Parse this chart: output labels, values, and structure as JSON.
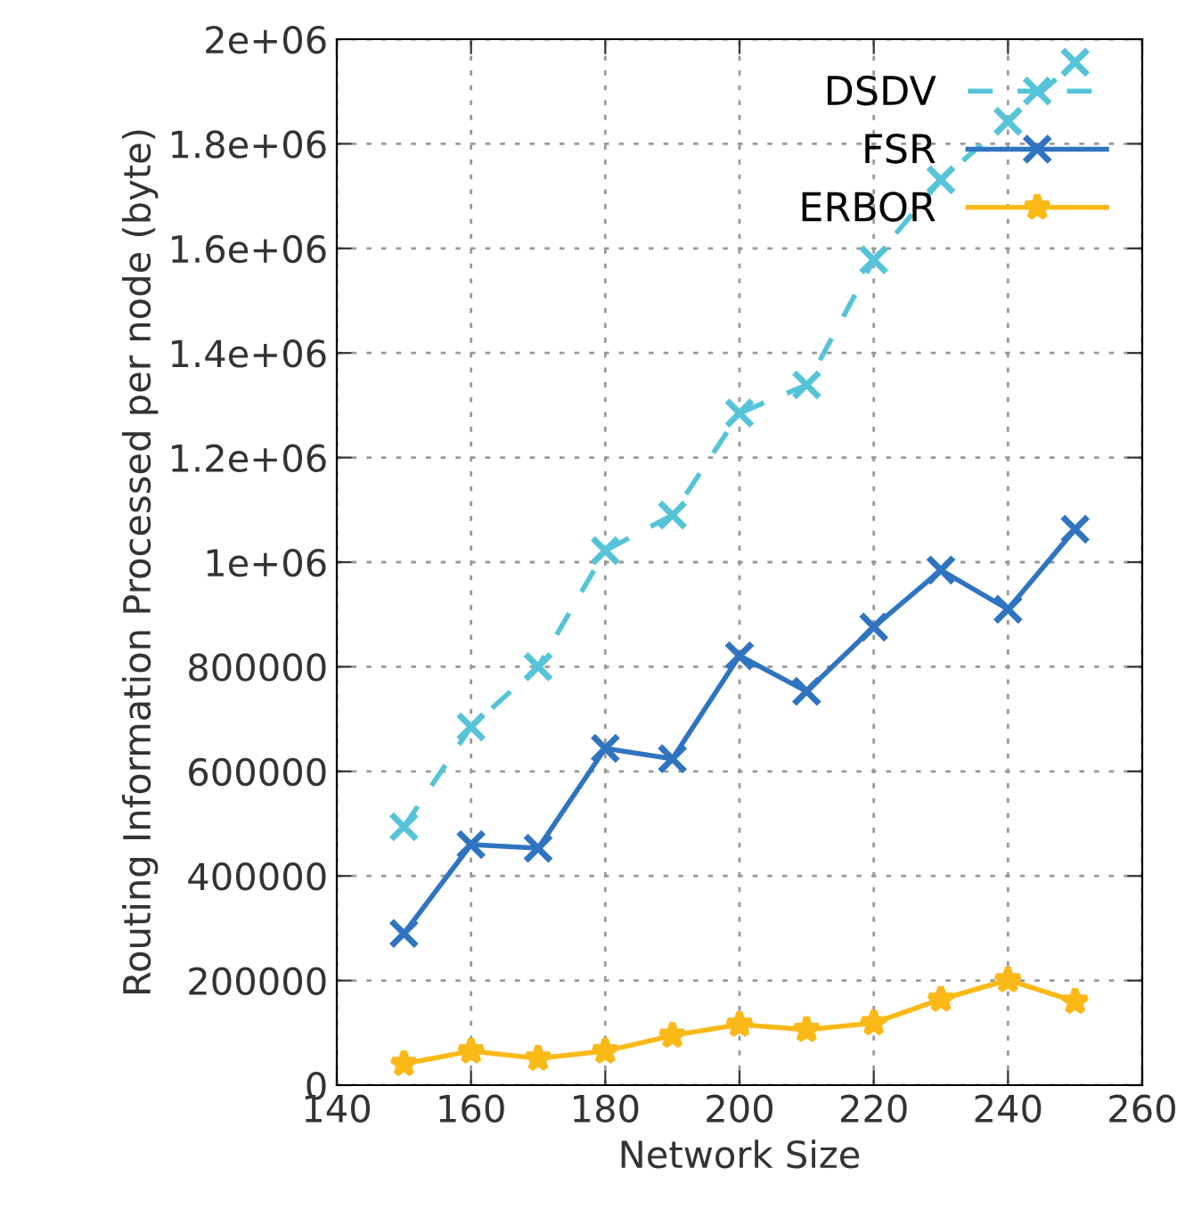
{
  "chart_data": {
    "type": "line",
    "xlabel": "Network Size",
    "ylabel": "Routing Information Processed per node (byte)",
    "x": [
      150,
      160,
      170,
      180,
      190,
      200,
      210,
      220,
      230,
      240,
      250
    ],
    "series": [
      {
        "name": "DSDV",
        "color": "#56c4d8",
        "line_style": "dashed",
        "marker": "cross",
        "values": [
          494000,
          685000,
          800000,
          1022000,
          1090000,
          1285000,
          1339000,
          1578000,
          1731000,
          1843000,
          1956000
        ]
      },
      {
        "name": "FSR",
        "color": "#2f74c0",
        "line_style": "solid",
        "marker": "cross",
        "values": [
          290000,
          460000,
          453000,
          644000,
          624000,
          821000,
          753000,
          876000,
          985000,
          910000,
          1063000
        ]
      },
      {
        "name": "ERBOR",
        "color": "#fbb917",
        "line_style": "solid",
        "marker": "star",
        "values": [
          41000,
          65000,
          51000,
          65000,
          95000,
          116000,
          106000,
          119000,
          164000,
          201000,
          160000
        ]
      }
    ],
    "xlim": [
      140,
      260
    ],
    "xticks": [
      140,
      160,
      180,
      200,
      220,
      240,
      260
    ],
    "ylim": [
      0,
      2000000
    ],
    "yticks": [
      {
        "value": 0,
        "label": "0"
      },
      {
        "value": 200000,
        "label": "200000"
      },
      {
        "value": 400000,
        "label": "400000"
      },
      {
        "value": 600000,
        "label": "600000"
      },
      {
        "value": 800000,
        "label": "800000"
      },
      {
        "value": 1000000,
        "label": "1e+06"
      },
      {
        "value": 1200000,
        "label": "1.2e+06"
      },
      {
        "value": 1400000,
        "label": "1.4e+06"
      },
      {
        "value": 1600000,
        "label": "1.6e+06"
      },
      {
        "value": 1800000,
        "label": "1.8e+06"
      },
      {
        "value": 2000000,
        "label": "2e+06"
      }
    ],
    "grid": true,
    "legend": "top right"
  }
}
